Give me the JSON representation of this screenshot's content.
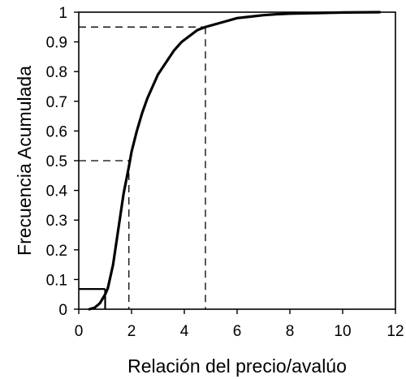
{
  "chart_data": {
    "type": "line",
    "title": "",
    "xlabel": "Relación del precio/avalúo",
    "ylabel": "Frecuencia Acumulada",
    "xlim": [
      0,
      12
    ],
    "ylim": [
      0,
      1
    ],
    "x_ticks": [
      "0",
      "2",
      "4",
      "6",
      "8",
      "10",
      "12"
    ],
    "y_ticks": [
      "0",
      "0.1",
      "0.2",
      "0.3",
      "0.4",
      "0.5",
      "0.6",
      "0.7",
      "0.8",
      "0.9",
      "1"
    ],
    "grid": false,
    "legend": "none",
    "series": [
      {
        "x": [
          0.4,
          0.6,
          0.8,
          1.0,
          1.1,
          1.3,
          1.5,
          1.7,
          1.9,
          2.0,
          2.2,
          2.4,
          2.6,
          2.8,
          3.0,
          3.3,
          3.6,
          3.9,
          4.2,
          4.5,
          4.8,
          5.2,
          5.6,
          6.0,
          6.5,
          7.0,
          7.5,
          8.0,
          9.0,
          10.0,
          11.4
        ],
        "y": [
          0.0,
          0.005,
          0.02,
          0.05,
          0.07,
          0.15,
          0.27,
          0.39,
          0.48,
          0.53,
          0.6,
          0.66,
          0.71,
          0.75,
          0.79,
          0.83,
          0.87,
          0.9,
          0.92,
          0.94,
          0.95,
          0.96,
          0.97,
          0.98,
          0.985,
          0.99,
          0.993,
          0.995,
          0.997,
          0.999,
          1.0
        ]
      }
    ],
    "reference_lines": [
      {
        "style": "dashed",
        "x": 1.9,
        "y": 0.5
      },
      {
        "style": "dashed",
        "x": 4.8,
        "y": 0.95
      },
      {
        "style": "solid",
        "x": 1.0,
        "y": 0.068
      }
    ]
  }
}
